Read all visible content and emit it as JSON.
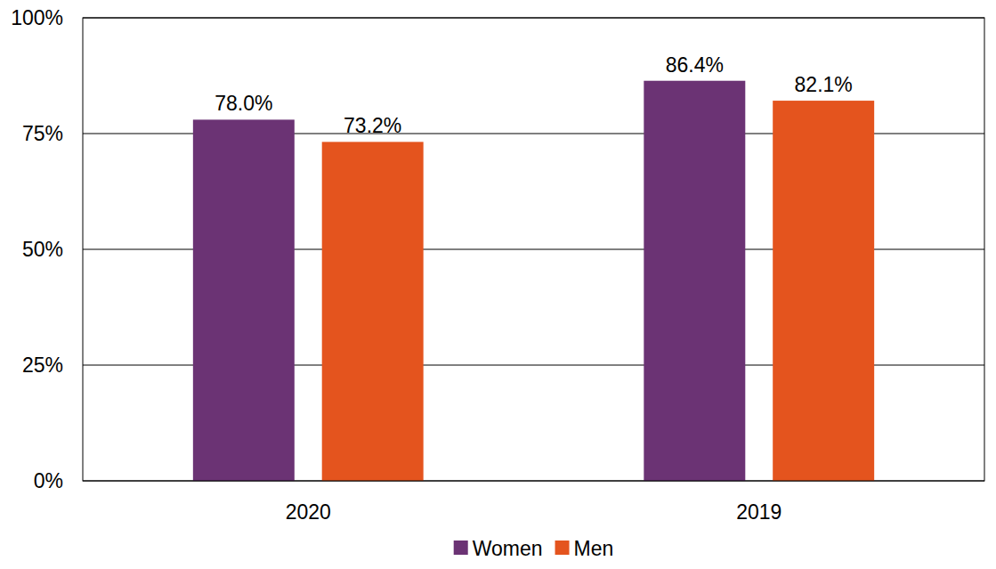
{
  "chart_data": {
    "type": "bar",
    "categories": [
      "2020",
      "2019"
    ],
    "series": [
      {
        "name": "Women",
        "color": "#6b3374",
        "values": [
          78.0,
          86.4
        ],
        "value_labels": [
          "78.0%",
          "86.4%"
        ]
      },
      {
        "name": "Men",
        "color": "#e4541e",
        "values": [
          73.2,
          82.1
        ],
        "value_labels": [
          "73.2%",
          "82.1%"
        ]
      }
    ],
    "ylim": [
      0,
      100
    ],
    "yticks": [
      {
        "value": 0,
        "label": "0%"
      },
      {
        "value": 25,
        "label": "25%"
      },
      {
        "value": 50,
        "label": "50%"
      },
      {
        "value": 75,
        "label": "75%"
      },
      {
        "value": 100,
        "label": "100%"
      }
    ],
    "grid": true,
    "data_labels": true,
    "legend": "bottom"
  }
}
